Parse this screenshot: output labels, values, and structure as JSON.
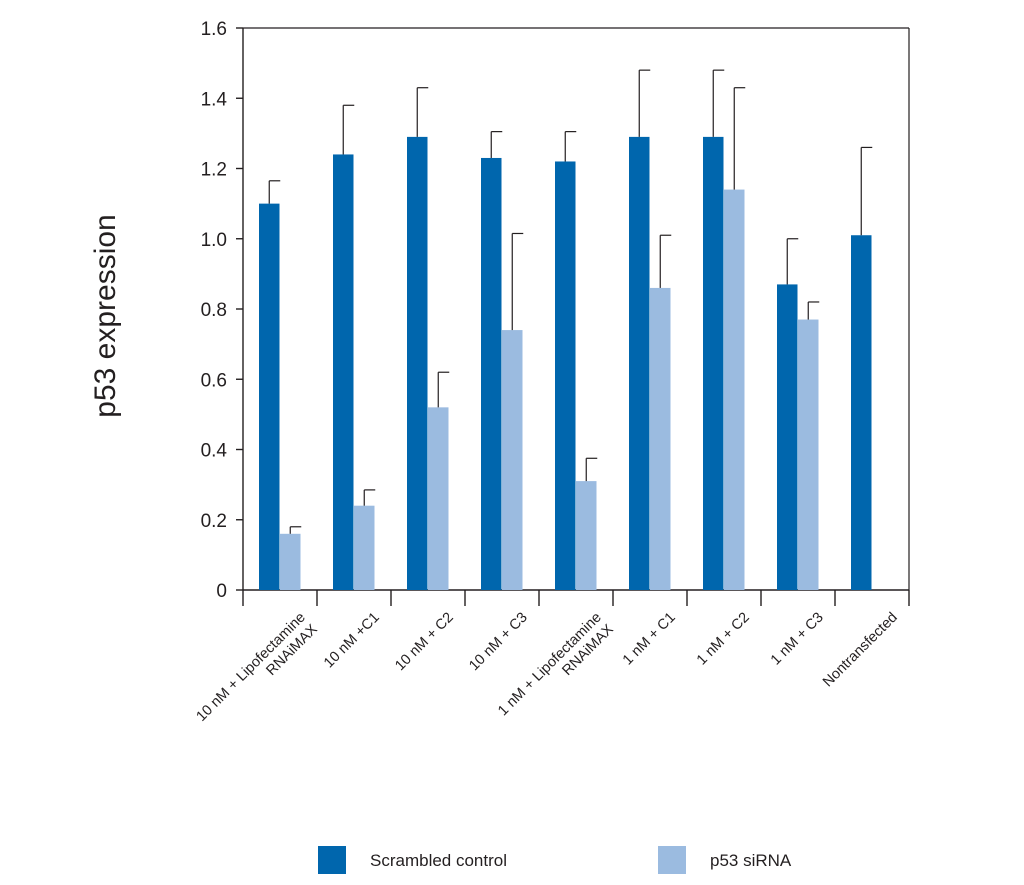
{
  "chart_data": {
    "type": "bar",
    "ylabel": "p53 expression",
    "xlabel": "",
    "ylim": [
      0,
      1.6
    ],
    "yticks": [
      "0",
      "0.2",
      "0.4",
      "0.6",
      "0.8",
      "1.0",
      "1.2",
      "1.4",
      "1.6"
    ],
    "grid": false,
    "legend_position": "bottom",
    "categories": [
      [
        "10 nM + Lipofectamine",
        "RNAiMAX"
      ],
      [
        "10 nM +C1"
      ],
      [
        "10 nM + C2"
      ],
      [
        "10 nM + C3"
      ],
      [
        "1 nM + Lipofectamine",
        "RNAiMAX"
      ],
      [
        "1 nM +  C1"
      ],
      [
        "1 nM + C2"
      ],
      [
        "1 nM + C3"
      ],
      [
        "Nontransfected"
      ]
    ],
    "series": [
      {
        "name": "Scrambled control",
        "color": "#0066ad",
        "values": [
          1.1,
          1.24,
          1.29,
          1.23,
          1.22,
          1.29,
          1.29,
          0.87,
          1.01
        ],
        "errors": [
          0.065,
          0.14,
          0.14,
          0.075,
          0.085,
          0.19,
          0.19,
          0.13,
          0.25
        ]
      },
      {
        "name": "p53 siRNA",
        "color": "#9bbbe0",
        "values": [
          0.16,
          0.24,
          0.52,
          0.74,
          0.31,
          0.86,
          1.14,
          0.77,
          null
        ],
        "errors": [
          0.02,
          0.045,
          0.1,
          0.275,
          0.065,
          0.15,
          0.29,
          0.05,
          null
        ]
      }
    ]
  }
}
